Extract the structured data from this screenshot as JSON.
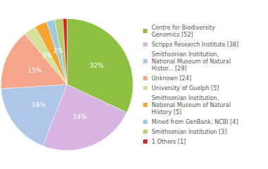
{
  "chart_data": {
    "type": "pie",
    "categories": [
      "Centre for Biodiversity\nGenomics [52]",
      "Scripps Research Institute [38]",
      "Smithsonian Institution,\nNational Museum of Natural\nHistor... [29]",
      "Unknown [24]",
      "University of Guelph [5]",
      "Smithsonian Institution,\nNational Museum of Natural\nHistory [5]",
      "Mined from GenBank, NCBI [4]",
      "Smithsonian Institution [3]",
      "1 Others [1]"
    ],
    "values": [
      32,
      24,
      18,
      15,
      3,
      3,
      2,
      2,
      1
    ],
    "value_labels": [
      "32%",
      "24%",
      "18%",
      "15%",
      "3%",
      "3%",
      "2%",
      null,
      null
    ],
    "colors": [
      "#8dc040",
      "#d8b4e0",
      "#aec6e8",
      "#f4a58a",
      "#d4e09b",
      "#f4a530",
      "#9ecae1",
      "#b5cf6b",
      "#d62728"
    ],
    "data_labels": true,
    "legend": "right"
  }
}
